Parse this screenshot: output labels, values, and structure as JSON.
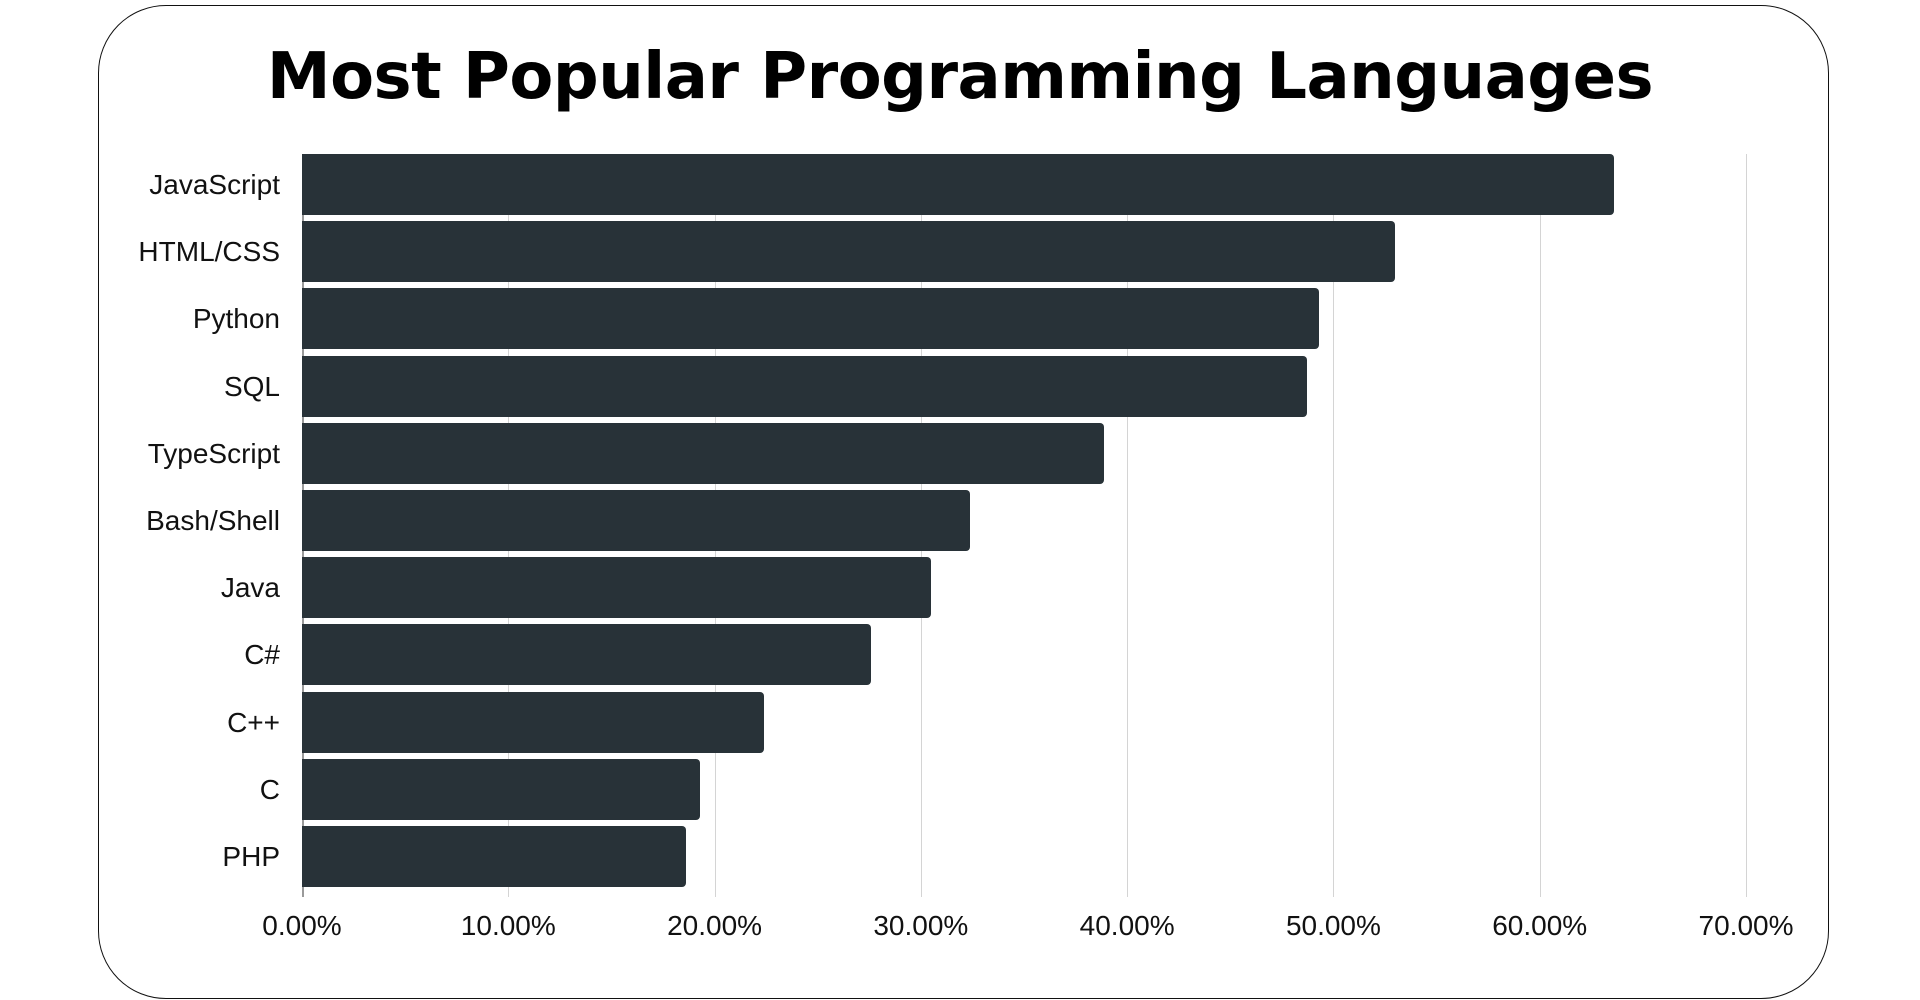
{
  "title": "Most Popular Programming Languages",
  "colors": {
    "bar": "#283238",
    "grid": "#d4d4d4",
    "text": "#111111"
  },
  "chart_data": {
    "type": "bar",
    "orientation": "horizontal",
    "title": "Most Popular Programming Languages",
    "xlabel": "",
    "ylabel": "",
    "categories": [
      "JavaScript",
      "HTML/CSS",
      "Python",
      "SQL",
      "TypeScript",
      "Bash/Shell",
      "Java",
      "C#",
      "C++",
      "C",
      "PHP"
    ],
    "values": [
      63.6,
      53.0,
      49.3,
      48.7,
      38.9,
      32.4,
      30.5,
      27.6,
      22.4,
      19.3,
      18.6
    ],
    "value_format": "percent",
    "xlim": [
      0,
      70
    ],
    "xticks": [
      "0.00%",
      "10.00%",
      "20.00%",
      "30.00%",
      "40.00%",
      "50.00%",
      "60.00%",
      "70.00%"
    ],
    "grid": true,
    "legend": null
  }
}
